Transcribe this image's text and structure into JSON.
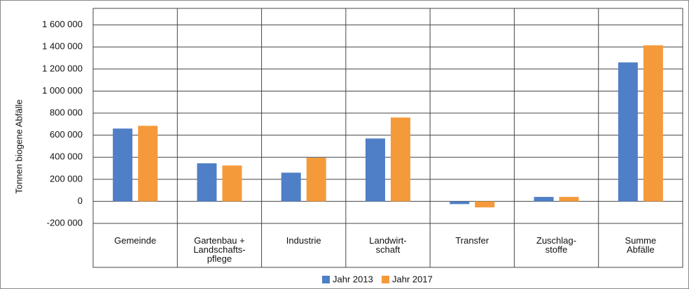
{
  "chart_data": {
    "type": "bar",
    "y_label": "Tonnen biogene Abfälle",
    "categories": [
      "Gemeinde",
      "Gartenbau +\nLandschafts-\npflege",
      "Industrie",
      "Landwirt-\nschaft",
      "Transfer",
      "Zuschlag-\nstoffe",
      "Summe\nAbfälle"
    ],
    "series": [
      {
        "name": "Jahr 2013",
        "color": "#4f7fc6",
        "values": [
          660000,
          345000,
          260000,
          570000,
          -25000,
          40000,
          1260000
        ]
      },
      {
        "name": "Jahr 2017",
        "color": "#f59a3b",
        "values": [
          685000,
          325000,
          395000,
          760000,
          -55000,
          40000,
          1415000
        ]
      }
    ],
    "ylim": [
      -200000,
      1750000
    ],
    "yticks": [
      {
        "value": -200000,
        "label": "-200 000"
      },
      0,
      {
        "value": 200000,
        "label": "200 000"
      },
      {
        "value": 400000,
        "label": "400 000"
      },
      {
        "value": 600000,
        "label": "600 000"
      },
      {
        "value": 800000,
        "label": "800 000"
      },
      {
        "value": 1000000,
        "label": "1 000 000"
      },
      {
        "value": 1200000,
        "label": "1 200 000"
      },
      {
        "value": 1400000,
        "label": "1 400 000"
      },
      {
        "value": 1600000,
        "label": "1 600 000"
      }
    ],
    "grid": true,
    "legend": "bottom"
  }
}
